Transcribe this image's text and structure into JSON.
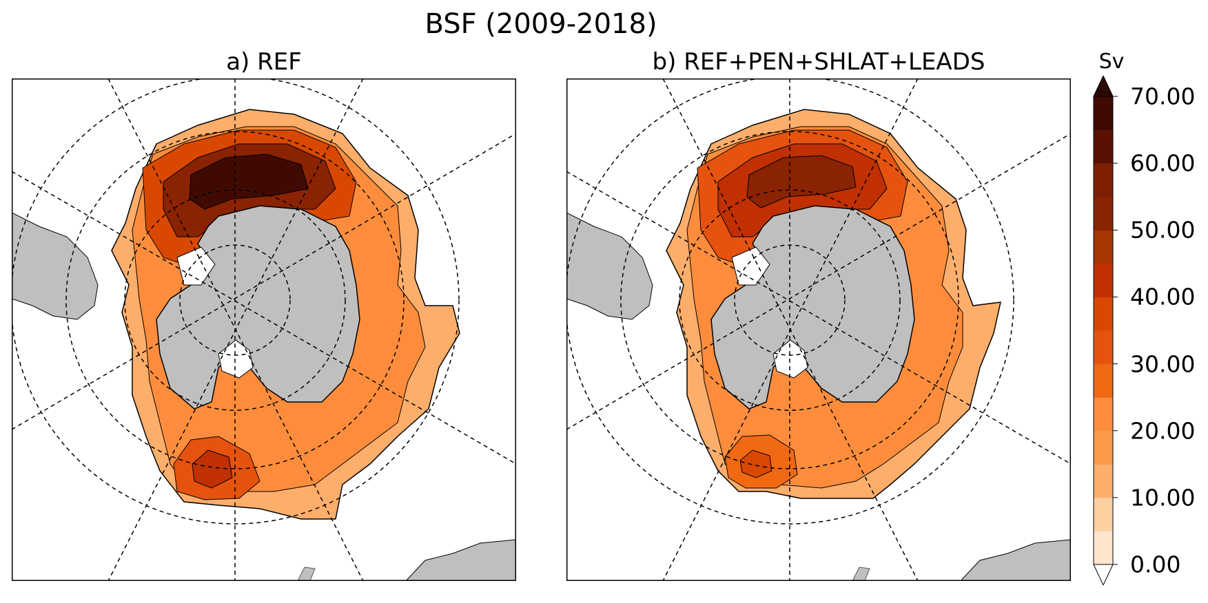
{
  "figure": {
    "title": "BSF (2009-2018)"
  },
  "panels": [
    {
      "id": "a",
      "title": "a) REF"
    },
    {
      "id": "b",
      "title": "b) REF+PEN+SHLAT+LEADS"
    }
  ],
  "colorbar": {
    "unit": "Sv",
    "ticks": [
      "0.00",
      "10.00",
      "20.00",
      "30.00",
      "40.00",
      "50.00",
      "60.00",
      "70.00"
    ],
    "tick_values": [
      0,
      10,
      20,
      30,
      40,
      50,
      60,
      70
    ],
    "range": [
      0,
      70
    ],
    "levels": 14,
    "extend": "both",
    "colors": [
      "#fee6ce",
      "#fdd0a2",
      "#fdae6b",
      "#fd9a47",
      "#fd8d3c",
      "#f16913",
      "#e5530e",
      "#d94801",
      "#c03002",
      "#a63603",
      "#8a2302",
      "#7f1f02",
      "#5a1103",
      "#400a03",
      "#2a0a06"
    ]
  },
  "map": {
    "projection": "south-polar-stereographic",
    "land_color": "#bfbfbf",
    "graticule_style": "dashed"
  }
}
